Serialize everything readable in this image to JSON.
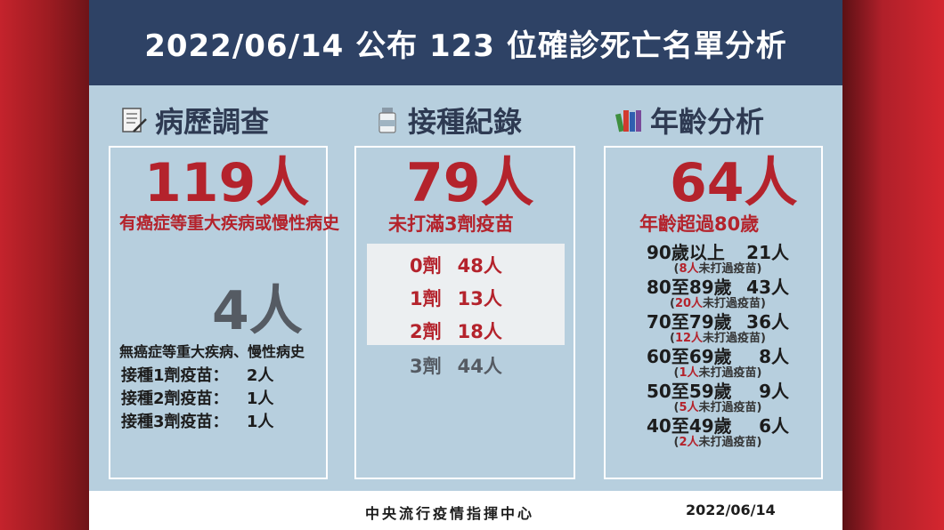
{
  "header": {
    "title": "2022/06/14 公布 123 位確診死亡名單分析"
  },
  "columns": {
    "history": {
      "title": "病歷調查",
      "icon": "document-pen-icon",
      "main_count": "119人",
      "main_label": "有癌症等重大疾病或慢性病史",
      "secondary_count": "4人",
      "secondary_label": "無癌症等重大疾病、慢性病史",
      "dose_lines": [
        {
          "label": "接種1劑疫苗：",
          "value": "2人"
        },
        {
          "label": "接種2劑疫苗：",
          "value": "1人"
        },
        {
          "label": "接種3劑疫苗：",
          "value": "1人"
        }
      ]
    },
    "vaccination": {
      "title": "接種紀錄",
      "icon": "vaccine-vial-icon",
      "main_count": "79人",
      "main_label": "未打滿3劑疫苗",
      "doses": [
        {
          "dose": "0劑",
          "count": "48人"
        },
        {
          "dose": "1劑",
          "count": "13人"
        },
        {
          "dose": "2劑",
          "count": "18人"
        },
        {
          "dose": "3劑",
          "count": "44人"
        }
      ]
    },
    "age": {
      "title": "年齡分析",
      "icon": "books-icon",
      "main_count": "64人",
      "main_label": "年齡超過80歲",
      "groups": [
        {
          "range": "90歲以上",
          "count": "21人",
          "note_num": "8人",
          "note_text": "未打過疫苗"
        },
        {
          "range": "80至89歲",
          "count": "43人",
          "note_num": "20人",
          "note_text": "未打過疫苗"
        },
        {
          "range": "70至79歲",
          "count": "36人",
          "note_num": "12人",
          "note_text": "未打過疫苗"
        },
        {
          "range": "60至69歲",
          "count": "8人",
          "note_num": "1人",
          "note_text": "未打過疫苗"
        },
        {
          "range": "50至59歲",
          "count": "9人",
          "note_num": "5人",
          "note_text": "未打過疫苗"
        },
        {
          "range": "40至49歲",
          "count": "6人",
          "note_num": "2人",
          "note_text": "未打過疫苗"
        }
      ]
    }
  },
  "footer": {
    "organization": "中央流行疫情指揮中心",
    "date": "2022/06/14"
  },
  "colors": {
    "header_bg": "#2e4265",
    "card_bg": "#b7cfde",
    "accent_red": "#b4232c",
    "gray_text": "#555b63"
  }
}
